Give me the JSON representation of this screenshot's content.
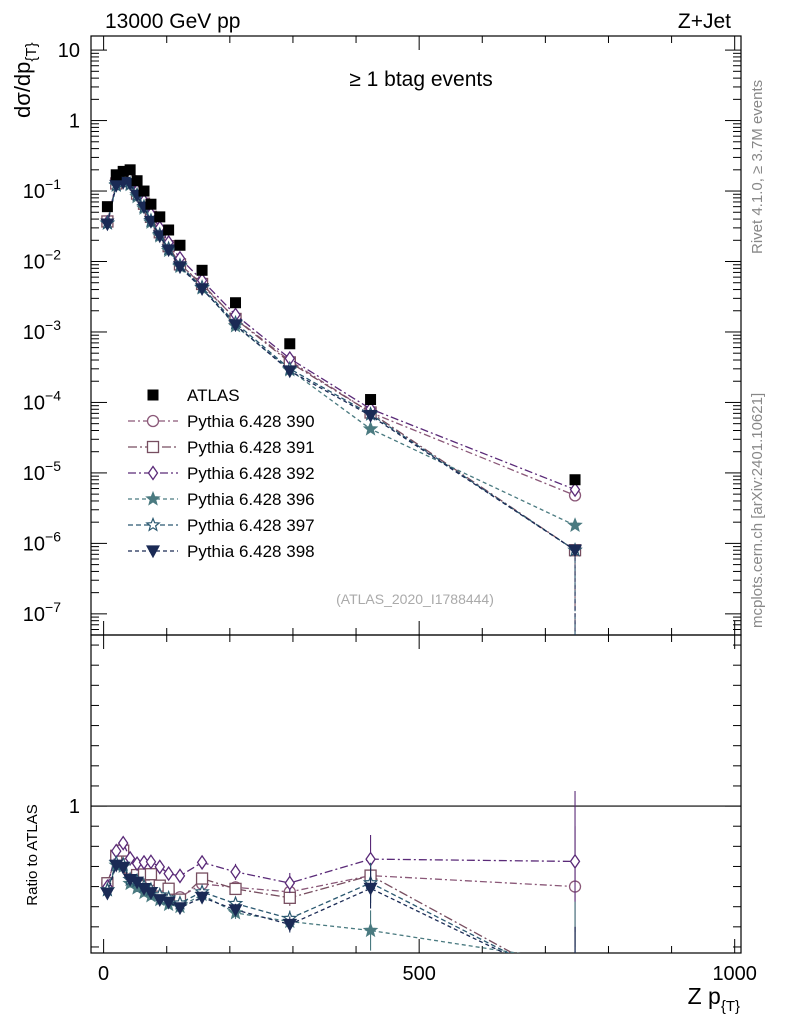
{
  "header": {
    "left": "13000 GeV pp",
    "right": "Z+Jet"
  },
  "side_text": {
    "top": "Rivet 4.1.0, ≥ 3.7M events",
    "bottom": "mcplots.cern.ch [arXiv:2401.10621]"
  },
  "chart_data": {
    "type": "scatter",
    "title": "≥ 1 btag events",
    "analysis_tag": "(ATLAS_2020_I1788444)",
    "xlabel": "Z p",
    "xlabel_sub": "{T}",
    "ylabel": "dσ/dp",
    "ylabel_sub": "{T}",
    "xlim": [
      -20,
      1010
    ],
    "ylim_log": [
      -7.3,
      1.2
    ],
    "ratio_ylim": [
      0.27,
      1.85
    ],
    "ratio_ylabel": "Ratio to ATLAS",
    "x_ticks": [
      0,
      500,
      1000
    ],
    "x_tick_labels": [
      "0",
      "500",
      "1000"
    ],
    "y_ticks_exp": [
      1,
      0,
      -1,
      -2,
      -3,
      -4,
      -5,
      -6,
      -7
    ],
    "y_tick_labels": [
      {
        "base": "10",
        "exp": ""
      },
      {
        "base": "1",
        "exp": ""
      },
      {
        "base": "10",
        "exp": "−1"
      },
      {
        "base": "10",
        "exp": "−2"
      },
      {
        "base": "10",
        "exp": "−3"
      },
      {
        "base": "10",
        "exp": "−4"
      },
      {
        "base": "10",
        "exp": "−5"
      },
      {
        "base": "10",
        "exp": "−6"
      },
      {
        "base": "10",
        "exp": "−7"
      }
    ],
    "ratio_ticks": [
      1
    ],
    "ratio_tick_labels": [
      "1"
    ],
    "x": [
      6,
      20,
      31,
      42,
      53,
      64,
      75,
      89,
      103,
      121,
      156,
      209,
      295,
      423,
      747
    ],
    "data": {
      "name": "ATLAS",
      "values": [
        0.06,
        0.17,
        0.19,
        0.2,
        0.14,
        0.1,
        0.065,
        0.043,
        0.028,
        0.017,
        0.0075,
        0.0026,
        0.00068,
        0.00011,
        8e-06
      ]
    },
    "series": [
      {
        "name": "Pythia 6.428 390",
        "color": "#8a5878",
        "marker": "circle-open",
        "dash": "7,3,2,3",
        "values": [
          0.037,
          0.128,
          0.145,
          0.131,
          0.09,
          0.063,
          0.041,
          0.026,
          0.0161,
          0.0093,
          0.0046,
          0.00155,
          0.00039,
          7.2e-05,
          4.8e-06
        ],
        "ratio_err": [
          0.02,
          0.02,
          0.02,
          0.02,
          0.02,
          0.02,
          0.02,
          0.02,
          0.02,
          0.025,
          0.03,
          0.03,
          0.04,
          0.1,
          0.3
        ]
      },
      {
        "name": "Pythia 6.428 391",
        "color": "#774e60",
        "marker": "square-open",
        "dash": "9,3,2,3",
        "values": [
          0.037,
          0.128,
          0.148,
          0.138,
          0.092,
          0.066,
          0.043,
          0.026,
          0.0165,
          0.0091,
          0.0048,
          0.00153,
          0.00037,
          7.2e-05,
          8e-07
        ],
        "ratio_err": [
          0.02,
          0.02,
          0.02,
          0.02,
          0.02,
          0.02,
          0.02,
          0.02,
          0.02,
          0.025,
          0.03,
          0.03,
          0.04,
          0.1,
          0.3
        ]
      },
      {
        "name": "Pythia 6.428 392",
        "color": "#5a2a78",
        "marker": "diamond-open",
        "dash": "8,3,2,3",
        "values": [
          0.036,
          0.132,
          0.155,
          0.148,
          0.1,
          0.072,
          0.047,
          0.03,
          0.0186,
          0.0111,
          0.0054,
          0.00175,
          0.00042,
          8.1e-05,
          5.8e-06
        ],
        "ratio_err": [
          0.02,
          0.02,
          0.02,
          0.02,
          0.02,
          0.02,
          0.02,
          0.02,
          0.02,
          0.025,
          0.03,
          0.04,
          0.05,
          0.12,
          0.35
        ]
      },
      {
        "name": "Pythia 6.428 396",
        "color": "#4a7a80",
        "marker": "star-filled",
        "dash": "4,3",
        "values": [
          0.035,
          0.12,
          0.133,
          0.123,
          0.083,
          0.057,
          0.036,
          0.023,
          0.0143,
          0.0085,
          0.0042,
          0.00122,
          0.00029,
          4.2e-05,
          1.8e-06
        ],
        "ratio_err": [
          0.02,
          0.02,
          0.02,
          0.02,
          0.02,
          0.02,
          0.02,
          0.02,
          0.02,
          0.025,
          0.03,
          0.03,
          0.04,
          0.1,
          0.3
        ]
      },
      {
        "name": "Pythia 6.428 397",
        "color": "#2a5870",
        "marker": "star-open",
        "dash": "5,3",
        "values": [
          0.035,
          0.122,
          0.135,
          0.127,
          0.088,
          0.06,
          0.038,
          0.024,
          0.0152,
          0.0088,
          0.0043,
          0.00134,
          0.0003,
          6.8e-05,
          8e-07
        ],
        "ratio_err": [
          0.02,
          0.02,
          0.02,
          0.02,
          0.02,
          0.02,
          0.02,
          0.02,
          0.02,
          0.025,
          0.03,
          0.03,
          0.04,
          0.1,
          0.3
        ]
      },
      {
        "name": "Pythia 6.428 398",
        "color": "#1a2a55",
        "marker": "triangle-down-filled",
        "dash": "4,3",
        "values": [
          0.034,
          0.12,
          0.132,
          0.127,
          0.087,
          0.059,
          0.037,
          0.023,
          0.0146,
          0.0084,
          0.0041,
          0.00126,
          0.00028,
          6.5e-05,
          8e-07
        ],
        "ratio_err": [
          0.02,
          0.02,
          0.02,
          0.02,
          0.02,
          0.02,
          0.02,
          0.02,
          0.02,
          0.025,
          0.03,
          0.03,
          0.04,
          0.1,
          0.3
        ]
      }
    ]
  }
}
